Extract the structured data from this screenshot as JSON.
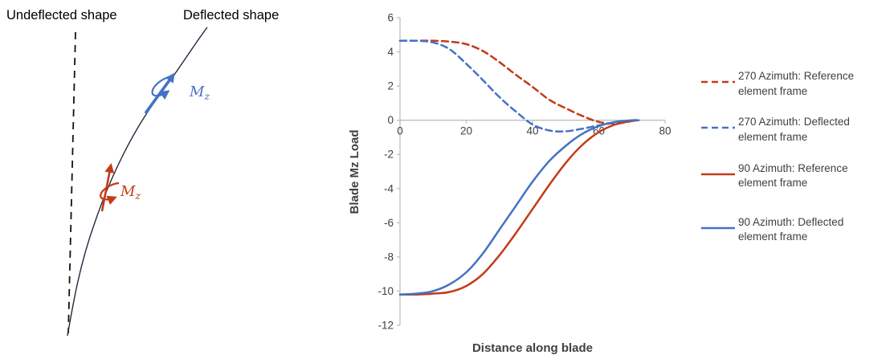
{
  "diagram": {
    "undeflected_label": "Undeflected shape",
    "deflected_label": "Deflected shape",
    "moment_symbol": "M",
    "moment_subscript": "z",
    "colors": {
      "blue": "#4472C4",
      "red": "#C33B17",
      "curve": "#1f2a3a"
    }
  },
  "chart_data": {
    "type": "line",
    "title": "",
    "xlabel": "Distance along blade",
    "ylabel": "Blade Mz Load",
    "xlim": [
      0,
      80
    ],
    "ylim": [
      -12,
      6
    ],
    "xticks": [
      0,
      20,
      40,
      60,
      80
    ],
    "yticks": [
      -12,
      -10,
      -8,
      -6,
      -4,
      -2,
      0,
      2,
      4,
      6
    ],
    "grid": false,
    "legend_position": "right",
    "axis_color": "#BFBFBF",
    "tick_label_color": "#404040",
    "axis_title_color": "#404040",
    "x": [
      0,
      5,
      10,
      15,
      20,
      25,
      30,
      35,
      40,
      45,
      50,
      55,
      60,
      65,
      70,
      72
    ],
    "series": [
      {
        "name": "270 Azimuth: Reference element frame",
        "color": "#C33B17",
        "dashed": true,
        "values": [
          4.65,
          4.65,
          4.65,
          4.6,
          4.45,
          4.05,
          3.4,
          2.65,
          1.95,
          1.2,
          0.7,
          0.25,
          -0.1,
          -0.2,
          -0.05,
          0
        ]
      },
      {
        "name": "270 Azimuth: Deflected element frame",
        "color": "#4472C4",
        "dashed": true,
        "values": [
          4.65,
          4.65,
          4.55,
          4.15,
          3.3,
          2.35,
          1.35,
          0.5,
          -0.25,
          -0.6,
          -0.65,
          -0.5,
          -0.3,
          -0.15,
          -0.02,
          0
        ]
      },
      {
        "name": "90 Azimuth: Reference element frame",
        "color": "#C33B17",
        "dashed": false,
        "values": [
          -10.2,
          -10.2,
          -10.15,
          -10.05,
          -9.7,
          -9.0,
          -7.9,
          -6.6,
          -5.2,
          -3.8,
          -2.5,
          -1.45,
          -0.7,
          -0.25,
          -0.05,
          0
        ]
      },
      {
        "name": "90 Azimuth: Deflected element frame",
        "color": "#4472C4",
        "dashed": false,
        "values": [
          -10.2,
          -10.15,
          -10.0,
          -9.6,
          -8.9,
          -7.8,
          -6.4,
          -5.0,
          -3.6,
          -2.4,
          -1.5,
          -0.8,
          -0.35,
          -0.1,
          0,
          0
        ]
      }
    ]
  }
}
